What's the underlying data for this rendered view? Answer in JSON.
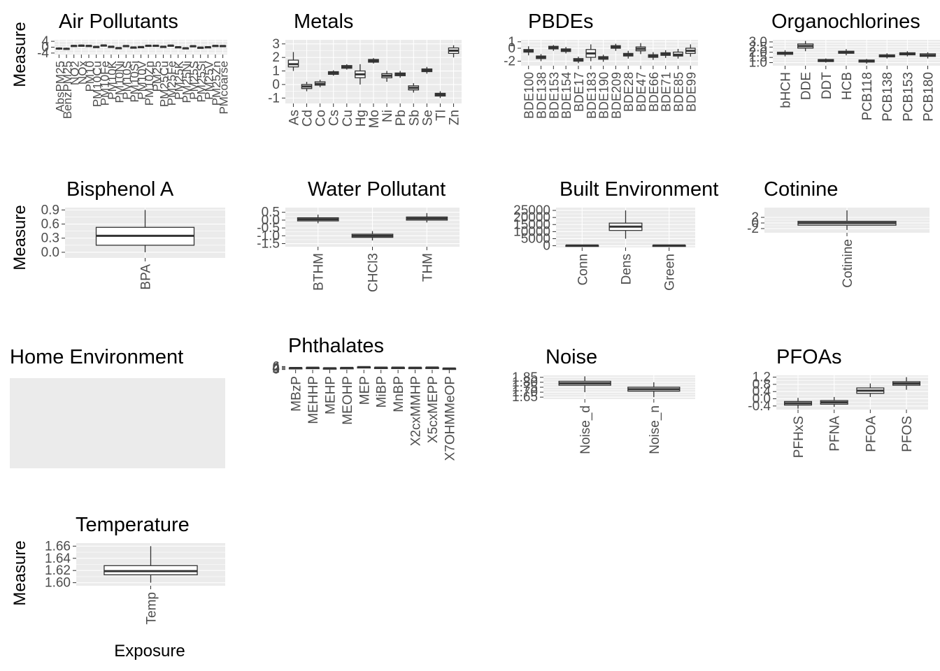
{
  "y_axis_title": "Measure",
  "x_axis_title": "Exposure",
  "colors": {
    "panel": "#ebebeb",
    "grid": "#ffffff",
    "box_line": "#333333",
    "tick_text": "#4d4d4d",
    "background": "#ffffff"
  },
  "chart_data": [
    {
      "type": "boxplot",
      "title": "Air Pollutants",
      "categories": [
        "AbsPM25",
        "BenzPM25",
        "NO2",
        "NOx",
        "PM10",
        "PM10Cu",
        "PM10Fe",
        "PM10K",
        "PM10Ni",
        "PM10S",
        "PM10Si",
        "PM10V",
        "PM10Zn",
        "PM25",
        "PM25Cu",
        "PM25Fe",
        "PM25K",
        "PM25Ni",
        "PM25S",
        "PM25Si",
        "PM25V",
        "PM25Zn",
        "PMcoarse"
      ],
      "yticks": [
        -4,
        0,
        4
      ],
      "ylim": [
        -5,
        5
      ],
      "boxes": [
        [
          -1.8,
          -1.2,
          -0.9,
          -0.6,
          -0.1
        ],
        [
          -1.9,
          -1.4,
          -1.1,
          -0.8,
          -0.3
        ],
        [
          0.3,
          0.7,
          0.9,
          1.1,
          1.6
        ],
        [
          0.5,
          0.9,
          1.1,
          1.3,
          1.8
        ],
        [
          0.3,
          0.7,
          0.9,
          1.1,
          1.5
        ],
        [
          -0.4,
          0.0,
          0.2,
          0.4,
          0.8
        ],
        [
          0.6,
          1.0,
          1.2,
          1.4,
          1.9
        ],
        [
          -0.3,
          0.1,
          0.3,
          0.5,
          0.9
        ],
        [
          -1.2,
          -0.8,
          -0.6,
          -0.4,
          0.0
        ],
        [
          0.2,
          0.6,
          0.8,
          1.0,
          1.4
        ],
        [
          -0.8,
          -0.4,
          -0.2,
          0.0,
          0.4
        ],
        [
          -0.5,
          -0.1,
          0.1,
          0.3,
          0.7
        ],
        [
          0.4,
          0.8,
          1.0,
          1.2,
          1.6
        ],
        [
          0.4,
          0.8,
          1.0,
          1.2,
          1.6
        ],
        [
          -0.3,
          0.1,
          0.3,
          0.5,
          0.9
        ],
        [
          0.5,
          0.9,
          1.1,
          1.3,
          1.7
        ],
        [
          -0.6,
          -0.2,
          0.0,
          0.2,
          0.6
        ],
        [
          -1.3,
          -0.9,
          -0.7,
          -0.5,
          -0.1
        ],
        [
          0.1,
          0.5,
          0.7,
          0.9,
          1.3
        ],
        [
          -0.9,
          -0.5,
          -0.3,
          -0.1,
          0.3
        ],
        [
          -0.6,
          -0.2,
          0.0,
          0.2,
          0.6
        ],
        [
          0.3,
          0.7,
          0.9,
          1.1,
          1.5
        ],
        [
          0.2,
          0.6,
          0.8,
          1.0,
          1.4
        ]
      ]
    },
    {
      "type": "boxplot",
      "title": "Metals",
      "categories": [
        "As",
        "Cd",
        "Co",
        "Cs",
        "Cu",
        "Hg",
        "Mo",
        "Ni",
        "Pb",
        "Sb",
        "Se",
        "Tl",
        "Zn"
      ],
      "yticks": [
        -1,
        0,
        1,
        2,
        3
      ],
      "ylim": [
        -1.4,
        3.3
      ],
      "boxes": [
        [
          1.0,
          1.3,
          1.5,
          1.8,
          2.4
        ],
        [
          -0.5,
          -0.3,
          -0.15,
          0.0,
          0.2
        ],
        [
          -0.2,
          -0.05,
          0.05,
          0.2,
          0.35
        ],
        [
          0.65,
          0.75,
          0.85,
          0.95,
          1.05
        ],
        [
          1.1,
          1.2,
          1.3,
          1.4,
          1.5
        ],
        [
          0.0,
          0.5,
          0.75,
          1.0,
          1.5
        ],
        [
          1.55,
          1.65,
          1.75,
          1.85,
          1.95
        ],
        [
          0.2,
          0.5,
          0.65,
          0.8,
          1.0
        ],
        [
          0.5,
          0.65,
          0.75,
          0.85,
          1.0
        ],
        [
          -0.6,
          -0.4,
          -0.25,
          -0.1,
          0.1
        ],
        [
          0.8,
          0.95,
          1.05,
          1.15,
          1.3
        ],
        [
          -1.0,
          -0.85,
          -0.75,
          -0.65,
          -0.5
        ],
        [
          2.0,
          2.3,
          2.5,
          2.7,
          2.9
        ]
      ]
    },
    {
      "type": "boxplot",
      "title": "PBDEs",
      "categories": [
        "BDE100",
        "BDE138",
        "BDE153",
        "BDE154",
        "BDE17",
        "BDE183",
        "BDE190",
        "BDE209",
        "BDE28",
        "BDE47",
        "BDE66",
        "BDE71",
        "BDE85",
        "BDE99"
      ],
      "yticks": [
        -2,
        0,
        1
      ],
      "ylim": [
        -2.7,
        1.3
      ],
      "boxes": [
        [
          -1.1,
          -0.6,
          -0.4,
          -0.2,
          0.3
        ],
        [
          -2.0,
          -1.6,
          -1.4,
          -1.2,
          -0.9
        ],
        [
          -0.4,
          -0.1,
          0.1,
          0.3,
          0.5
        ],
        [
          -0.8,
          -0.5,
          -0.3,
          -0.1,
          0.2
        ],
        [
          -2.3,
          -2.0,
          -1.8,
          -1.6,
          -1.3
        ],
        [
          -2.0,
          -1.4,
          -0.8,
          -0.2,
          0.6
        ],
        [
          -2.1,
          -1.7,
          -1.5,
          -1.3,
          -1.0
        ],
        [
          -0.4,
          0.0,
          0.2,
          0.4,
          0.7
        ],
        [
          -1.6,
          -1.2,
          -1.0,
          -0.8,
          -0.4
        ],
        [
          -0.9,
          -0.4,
          -0.1,
          0.2,
          0.8
        ],
        [
          -1.8,
          -1.4,
          -1.2,
          -1.0,
          -0.6
        ],
        [
          -1.5,
          -1.1,
          -0.9,
          -0.7,
          -0.3
        ],
        [
          -1.6,
          -1.2,
          -1.0,
          -0.6,
          -0.1
        ],
        [
          -1.3,
          -0.8,
          -0.4,
          0.0,
          0.6
        ]
      ]
    },
    {
      "type": "boxplot",
      "title": "Organochlorines",
      "categories": [
        "bHCH",
        "DDE",
        "DDT",
        "HCB",
        "PCB118",
        "PCB138",
        "PCB153",
        "PCB180"
      ],
      "yticks": [
        1.0,
        1.5,
        2.0,
        2.5,
        3.0
      ],
      "ylim": [
        0.7,
        3.2
      ],
      "boxes": [
        [
          1.6,
          1.8,
          1.9,
          2.0,
          2.2
        ],
        [
          2.1,
          2.4,
          2.6,
          2.8,
          3.1
        ],
        [
          1.0,
          1.1,
          1.2,
          1.3,
          1.4
        ],
        [
          1.7,
          1.9,
          2.0,
          2.1,
          2.3
        ],
        [
          0.9,
          1.05,
          1.15,
          1.25,
          1.35
        ],
        [
          1.4,
          1.55,
          1.65,
          1.75,
          1.9
        ],
        [
          1.6,
          1.75,
          1.85,
          1.95,
          2.1
        ],
        [
          1.4,
          1.6,
          1.7,
          1.85,
          2.0
        ]
      ]
    },
    {
      "type": "boxplot",
      "title": "Bisphenol A",
      "categories": [
        "BPA"
      ],
      "yticks": [
        0.0,
        0.3,
        0.6,
        0.9
      ],
      "ylim": [
        -0.12,
        0.95
      ],
      "boxes": [
        [
          0.0,
          0.15,
          0.35,
          0.53,
          0.9
        ]
      ]
    },
    {
      "type": "boxplot",
      "title": "Water Pollutant",
      "categories": [
        "BTHM",
        "CHCl3",
        "THM"
      ],
      "yticks": [
        -1.5,
        -1.0,
        -0.5,
        0.0,
        0.5
      ],
      "ylim": [
        -1.7,
        0.8
      ],
      "boxes": [
        [
          -0.2,
          -0.05,
          0.05,
          0.15,
          0.35
        ],
        [
          -1.3,
          -1.1,
          -1.0,
          -0.9,
          -0.7
        ],
        [
          -0.15,
          0.0,
          0.1,
          0.2,
          0.45
        ]
      ]
    },
    {
      "type": "boxplot",
      "title": "Built Environment",
      "categories": [
        "Conn",
        "Dens",
        "Green"
      ],
      "yticks": [
        0,
        5000,
        10000,
        15000,
        20000,
        25000
      ],
      "ylim": [
        -1200,
        27000
      ],
      "boxes": [
        [
          0,
          80,
          150,
          250,
          600
        ],
        [
          5000,
          10800,
          13500,
          16000,
          25000
        ],
        [
          0,
          80,
          150,
          250,
          600
        ]
      ]
    },
    {
      "type": "boxplot",
      "title": "Cotinine",
      "categories": [
        "Cotinine"
      ],
      "yticks": [
        -2,
        0,
        2
      ],
      "ylim": [
        -3.5,
        5.5
      ],
      "boxes": [
        [
          -2.5,
          -0.8,
          0.0,
          0.6,
          4.5
        ]
      ]
    },
    {
      "type": "boxplot",
      "title": "Home Environment",
      "categories": [],
      "yticks": [],
      "ylim": [
        0,
        1
      ],
      "boxes": []
    },
    {
      "type": "boxplot",
      "title": "Phthalates",
      "categories": [
        "MBzP",
        "MEHHP",
        "MEHP",
        "MEOHP",
        "MEP",
        "MiBP",
        "MnBP",
        "X2cxMMHP",
        "X5cxMEPP",
        "X7OHMMeOP"
      ],
      "yticks": [
        0,
        2,
        4,
        6
      ],
      "ylim": [
        -0.5,
        6.5
      ],
      "boxes": [
        [
          2.5,
          2.8,
          3.0,
          3.2,
          3.5
        ],
        [
          3.0,
          3.3,
          3.5,
          3.7,
          4.0
        ],
        [
          2.0,
          2.3,
          2.5,
          2.7,
          3.0
        ],
        [
          2.7,
          3.0,
          3.2,
          3.4,
          3.7
        ],
        [
          4.0,
          4.5,
          4.8,
          5.1,
          5.6
        ],
        [
          3.2,
          3.5,
          3.7,
          3.9,
          4.2
        ],
        [
          3.2,
          3.5,
          3.7,
          3.9,
          4.2
        ],
        [
          3.0,
          3.3,
          3.5,
          3.7,
          4.0
        ],
        [
          3.3,
          3.6,
          3.8,
          4.0,
          4.3
        ],
        [
          1.5,
          1.8,
          2.0,
          2.2,
          2.5
        ]
      ]
    },
    {
      "type": "boxplot",
      "title": "Noise",
      "categories": [
        "Noise_d",
        "Noise_n"
      ],
      "yticks": [
        1.65,
        1.7,
        1.75,
        1.8,
        1.85
      ],
      "ylim": [
        1.63,
        1.87
      ],
      "boxes": [
        [
          1.7,
          1.77,
          1.79,
          1.81,
          1.86
        ],
        [
          1.65,
          1.71,
          1.73,
          1.75,
          1.8
        ]
      ]
    },
    {
      "type": "boxplot",
      "title": "PFOAs",
      "categories": [
        "PFHxS",
        "PFNA",
        "PFOA",
        "PFOS"
      ],
      "yticks": [
        -0.4,
        0.0,
        0.4,
        0.8,
        1.2
      ],
      "ylim": [
        -0.6,
        1.3
      ],
      "boxes": [
        [
          -0.55,
          -0.35,
          -0.25,
          -0.15,
          0.05
        ],
        [
          -0.45,
          -0.3,
          -0.2,
          -0.1,
          0.1
        ],
        [
          0.1,
          0.3,
          0.45,
          0.6,
          0.85
        ],
        [
          0.5,
          0.75,
          0.85,
          0.95,
          1.2
        ]
      ]
    },
    {
      "type": "boxplot",
      "title": "Temperature",
      "categories": [
        "Temp"
      ],
      "yticks": [
        1.6,
        1.62,
        1.64,
        1.66
      ],
      "ylim": [
        1.595,
        1.665
      ],
      "boxes": [
        [
          1.6,
          1.613,
          1.619,
          1.628,
          1.66
        ]
      ]
    }
  ]
}
